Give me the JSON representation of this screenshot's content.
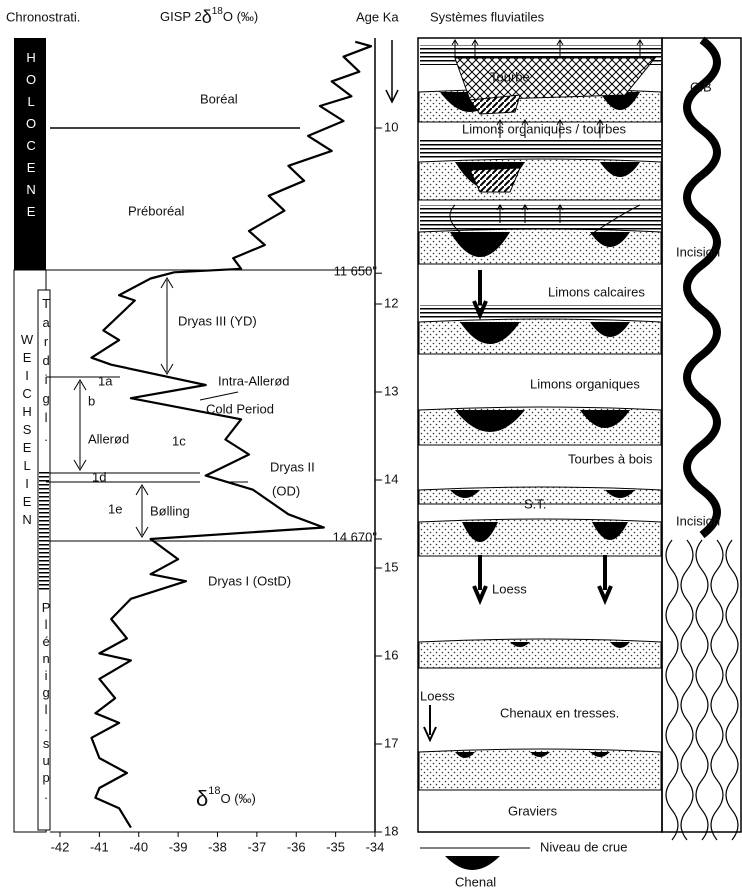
{
  "header": {
    "chronostrat": "Chronostrati.",
    "gisp_prefix": "GISP 2",
    "delta": "δ",
    "isotope": "18",
    "gisp_suffix": "O (‰)",
    "age": "Age Ka",
    "fluvial": "Systèmes fluviatiles"
  },
  "chronostratigraphy": {
    "holocene": "HOLOCENE",
    "weichselien": "WEICHSELIEN",
    "tardiglaciaire": "Tardigl.",
    "pleniglaciaire": "Plénigl.sup."
  },
  "periods": [
    "Boréal",
    "Préboréal",
    "Dryas III (YD)",
    "Intra-Allerød",
    "Cold Period",
    "Allerød",
    "1c",
    "1a",
    "b",
    "1d",
    "1e",
    "Bølling",
    "Dryas II",
    "(OD)",
    "Dryas I (OstD)"
  ],
  "chart_data": {
    "type": "line",
    "xlabel": {
      "delta": "δ",
      "isotope": "18",
      "rest": "O (‰)"
    },
    "xlim": [
      -42,
      -34
    ],
    "xticks": [
      -42,
      -41,
      -40,
      -39,
      -38,
      -37,
      -36,
      -35,
      -34
    ],
    "ylim": [
      9,
      18
    ],
    "yticks": [
      10,
      {
        "value": 11.65,
        "label": "11 650\""
      },
      12,
      13,
      14,
      {
        "value": 14.67,
        "label": "14 670\""
      },
      15,
      16,
      17,
      18
    ],
    "y": [
      9.02,
      9.07,
      9.19,
      9.36,
      9.47,
      9.64,
      9.75,
      9.92,
      10.09,
      10.26,
      10.43,
      10.6,
      10.77,
      10.94,
      11.17,
      11.33,
      11.48,
      11.6,
      11.64,
      11.71,
      11.9,
      11.96,
      12.3,
      12.41,
      12.61,
      12.69,
      12.92,
      13.07,
      13.31,
      13.54,
      13.71,
      13.95,
      14.11,
      14.39,
      14.54,
      14.67,
      14.9,
      15.07,
      15.15,
      15.35,
      15.58,
      15.8,
      15.97,
      16.05,
      16.26,
      16.48,
      16.65,
      16.76,
      16.93,
      17.16,
      17.33,
      17.5,
      17.61,
      17.73,
      17.95
    ],
    "values": [
      -34.5,
      -34.1,
      -34.8,
      -34.4,
      -35.1,
      -34.6,
      -35.4,
      -34.8,
      -35.7,
      -35.1,
      -36.2,
      -35.8,
      -36.7,
      -36.3,
      -37.2,
      -36.8,
      -37.6,
      -37.4,
      -39.1,
      -39.7,
      -40.5,
      -40.1,
      -40.9,
      -40.5,
      -41.2,
      -40.7,
      -38.3,
      -40.2,
      -37.4,
      -37.8,
      -37.2,
      -38.3,
      -37.1,
      -36.2,
      -35.3,
      -39.7,
      -39.0,
      -39.7,
      -38.8,
      -40.2,
      -40.7,
      -40.3,
      -41.0,
      -40.2,
      -41.0,
      -40.6,
      -41.1,
      -40.5,
      -41.2,
      -41.0,
      -40.3,
      -41.0,
      -41.1,
      -40.5,
      -40.2
    ],
    "color": "#000000"
  },
  "fluvial": [
    "Tourbe",
    "Limons organiques / tourbes",
    "Limons calcaires",
    "Limons organiques",
    "Tourbes à bois",
    "S.T.",
    "Loess",
    "Loess",
    "Chenaux en tresses.",
    "Graviers",
    "C.B",
    "Incision",
    "Incision"
  ],
  "legend": {
    "flood": "Niveau de crue",
    "channel": "Chenal"
  }
}
